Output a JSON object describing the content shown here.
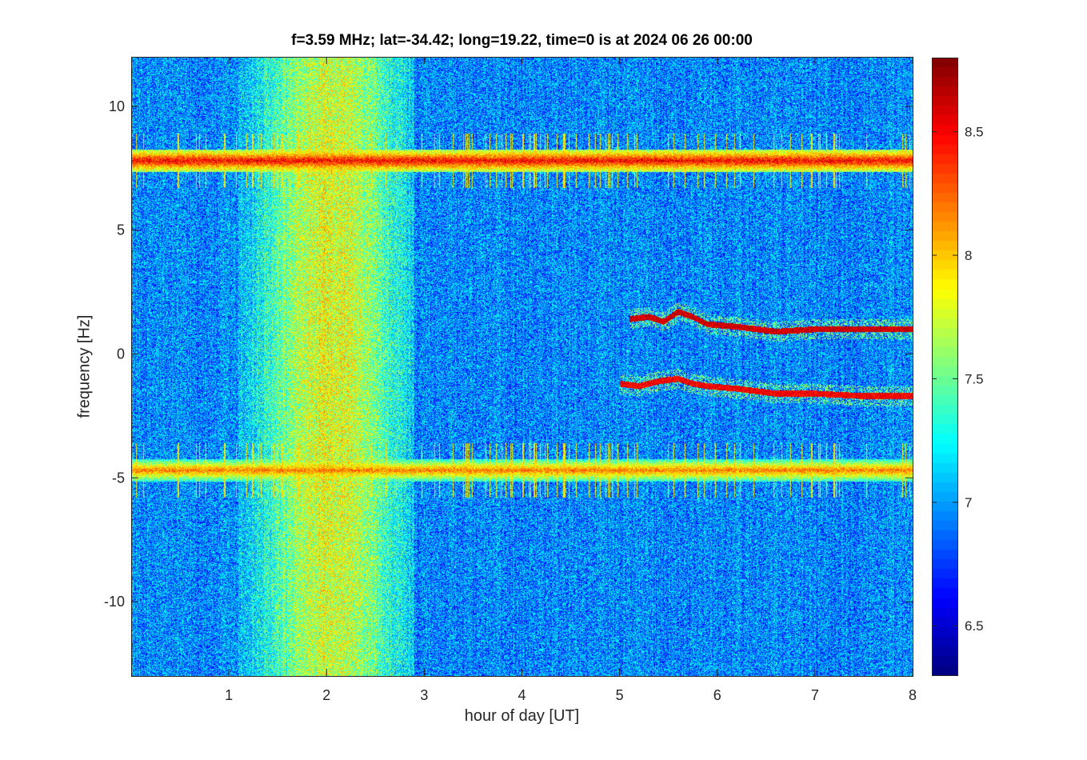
{
  "chart_data": {
    "type": "heatmap",
    "title": "f=3.59 MHz;  lat=-34.42; long=19.22, time=0 is at 2024 06 26 00:00",
    "xlabel": "hour of day [UT]",
    "ylabel": "frequency [Hz]",
    "xlim": [
      0,
      8
    ],
    "ylim": [
      -13,
      12
    ],
    "xticks": [
      1,
      2,
      3,
      4,
      5,
      6,
      7,
      8
    ],
    "xticklabels": [
      "1",
      "2",
      "3",
      "4",
      "5",
      "6",
      "7",
      "8"
    ],
    "yticks": [
      -10,
      -5,
      0,
      5,
      10
    ],
    "yticklabels": [
      "-10",
      "-5",
      "0",
      "5",
      "10"
    ],
    "colormap": "jet",
    "clim": [
      6.3,
      8.8
    ],
    "colorbar": {
      "ticks": [
        6.5,
        7,
        7.5,
        8,
        8.5
      ],
      "ticklabels": [
        "6.5",
        "7",
        "7.5",
        "8",
        "8.5"
      ],
      "location": "right"
    },
    "background_level": 6.95,
    "features": {
      "broadband_enhancement": {
        "x_range": [
          1.1,
          2.9
        ],
        "peak_x": 2.05,
        "peak_level": 7.8
      },
      "horizontal_lines": [
        {
          "y": 7.8,
          "x_range": [
            0,
            8
          ],
          "level": 8.5
        },
        {
          "y": -4.7,
          "x_range": [
            0,
            8
          ],
          "level": 8.2
        }
      ],
      "traces": [
        {
          "points": [
            [
              5.1,
              1.4
            ],
            [
              5.3,
              1.5
            ],
            [
              5.45,
              1.3
            ],
            [
              5.6,
              1.7
            ],
            [
              5.75,
              1.5
            ],
            [
              5.9,
              1.2
            ],
            [
              6.2,
              1.1
            ],
            [
              6.6,
              0.9
            ],
            [
              7.0,
              1.0
            ],
            [
              7.5,
              1.0
            ],
            [
              8.0,
              1.0
            ]
          ],
          "level": 8.6
        },
        {
          "points": [
            [
              5.0,
              -1.2
            ],
            [
              5.2,
              -1.3
            ],
            [
              5.4,
              -1.1
            ],
            [
              5.6,
              -1.0
            ],
            [
              5.75,
              -1.2
            ],
            [
              5.9,
              -1.3
            ],
            [
              6.2,
              -1.4
            ],
            [
              6.6,
              -1.6
            ],
            [
              7.0,
              -1.6
            ],
            [
              7.5,
              -1.7
            ],
            [
              8.0,
              -1.7
            ]
          ],
          "level": 8.5
        }
      ]
    }
  }
}
